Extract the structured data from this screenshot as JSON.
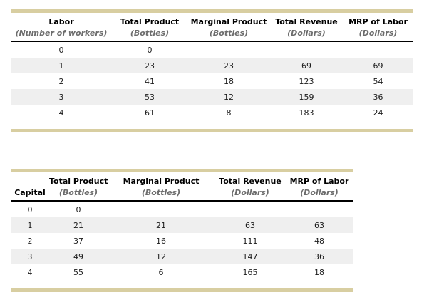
{
  "colors": {
    "accent_bar": "#d8cea1",
    "alt_row_background": "#efefef",
    "header_text": "#000000",
    "subheader_text": "#6c6c6c",
    "number_text": "#1c1c1c",
    "page_background": "#ffffff"
  },
  "table1": {
    "title": "labor-production-table",
    "header_main": [
      "Labor",
      "Total Product",
      "Marginal Product",
      "Total Revenue",
      "MRP of Labor"
    ],
    "header_sub": [
      "(Number of workers)",
      "(Bottles)",
      "(Bottles)",
      "(Dollars)",
      "(Dollars)"
    ],
    "rows": [
      [
        "0",
        "0",
        "",
        "",
        ""
      ],
      [
        "1",
        "23",
        "23",
        "69",
        "69"
      ],
      [
        "2",
        "41",
        "18",
        "123",
        "54"
      ],
      [
        "3",
        "53",
        "12",
        "159",
        "36"
      ],
      [
        "4",
        "61",
        "8",
        "183",
        "24"
      ]
    ]
  },
  "table2": {
    "title": "capital-production-table",
    "header_main": [
      "",
      "Total Product",
      "Marginal Product",
      "Total Revenue",
      "MRP of Labor"
    ],
    "header_sub": [
      "Capital",
      "(Bottles)",
      "(Bottles)",
      "(Dollars)",
      "(Dollars)"
    ],
    "rows": [
      [
        "0",
        "0",
        "",
        "",
        ""
      ],
      [
        "1",
        "21",
        "21",
        "63",
        "63"
      ],
      [
        "2",
        "37",
        "16",
        "111",
        "48"
      ],
      [
        "3",
        "49",
        "12",
        "147",
        "36"
      ],
      [
        "4",
        "55",
        "6",
        "165",
        "18"
      ]
    ]
  }
}
